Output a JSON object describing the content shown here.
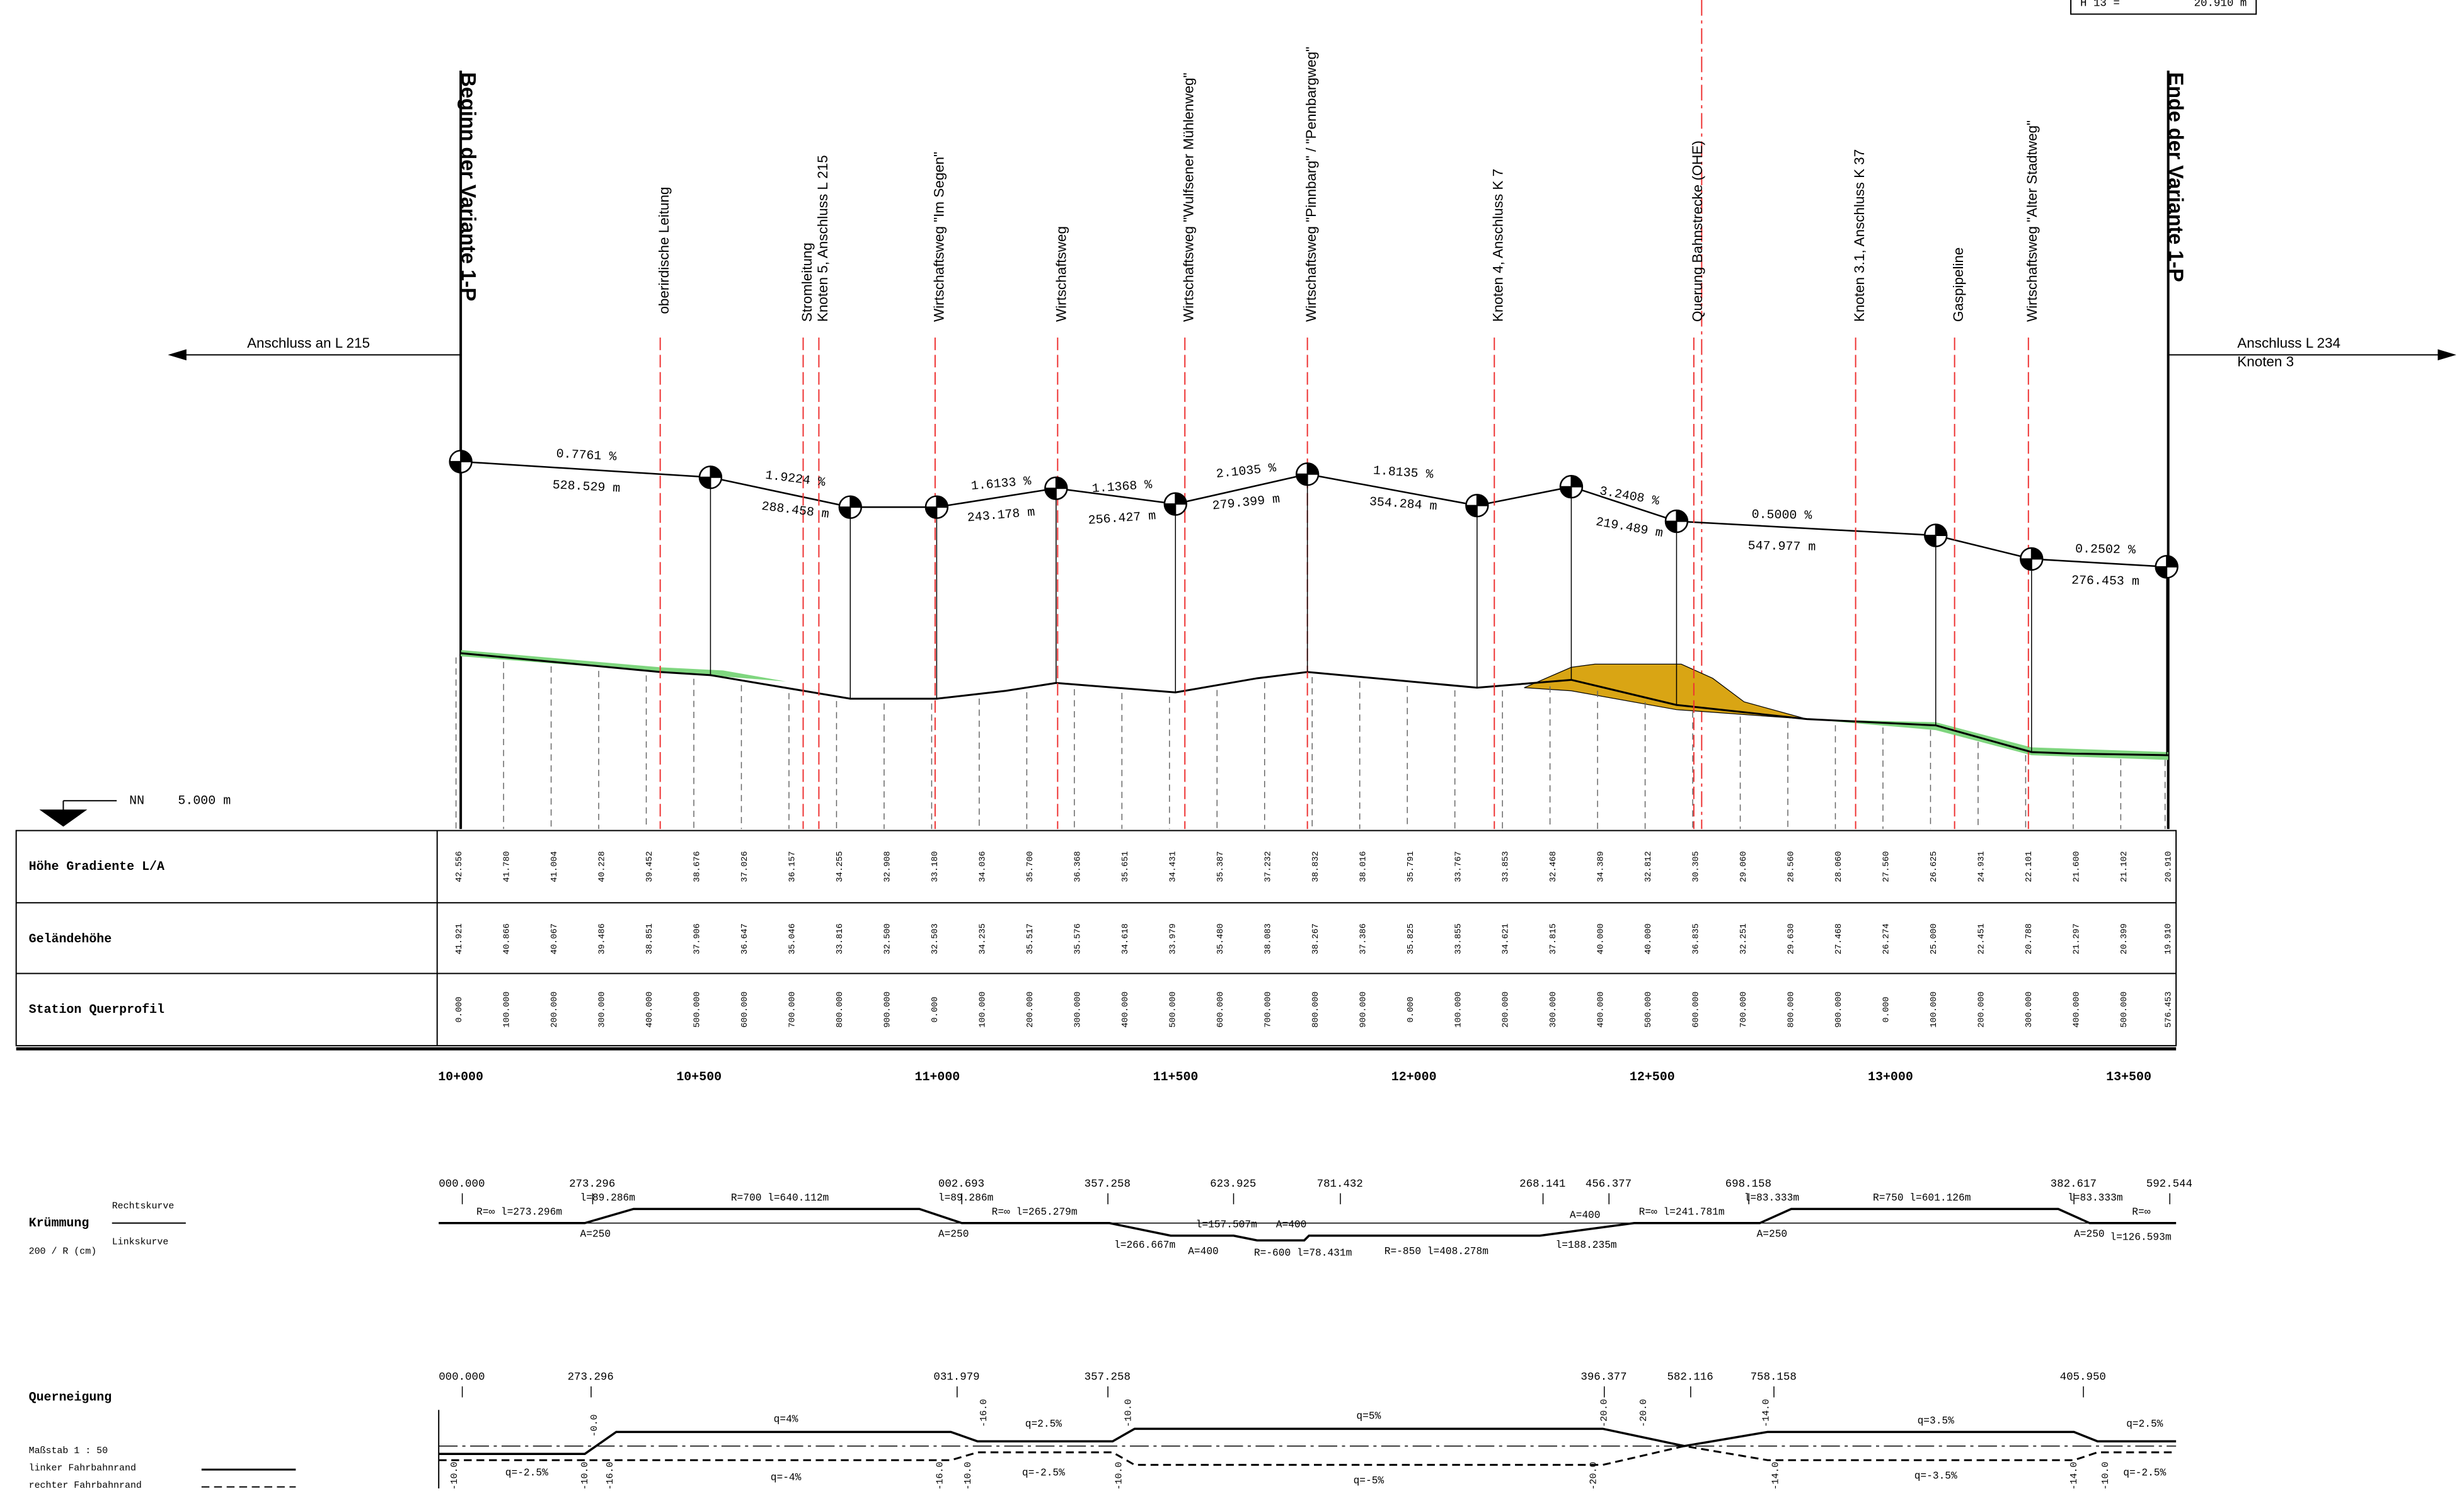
{
  "header": {
    "box_label": "H 13 =",
    "box_value": "20.910 m",
    "begin": "Beginn der Variante 1-P",
    "end": "Ende der Variante 1-P",
    "left_connection": "Anschluss an L 215",
    "right_connection": [
      "Anschluss L 234",
      "Knoten 3"
    ],
    "datum": "NN",
    "datum_value": "5.000 m"
  },
  "landmarks": [
    "oberirdische Leitung",
    "Stromleitung",
    "Knoten 5, Anschluss L 215",
    "Wirtschaftsweg \"Im Segen\"",
    "Wirtschaftsweg",
    "Wirtschaftsweg \"Wulfsener Mühlenweg\"",
    "Wirtschaftsweg \"Pinnbarg\" / \"Pennbargweg\"",
    "Knoten 4, Anschluss K 7",
    "Querung Bahnstrecke (OHE)",
    "Knoten 3.1, Anschluss K 37",
    "Gaspipeline",
    "Wirtschaftsweg \"Alter Stadtweg\""
  ],
  "gradients": [
    {
      "slope": "0.7761 %",
      "length": "528.529 m"
    },
    {
      "slope": "1.9224 %",
      "length": "288.458 m"
    },
    {
      "slope": "1.6133 %",
      "length": "243.178 m"
    },
    {
      "slope": "1.1368 %",
      "length": "256.427 m"
    },
    {
      "slope": "2.1035 %",
      "length": "279.399 m"
    },
    {
      "slope": "1.8135 %",
      "length": "354.284 m"
    },
    {
      "slope": "3.2408 %",
      "length": "219.489 m"
    },
    {
      "slope": "0.5000 %",
      "length": "547.977 m"
    },
    {
      "slope": "0.2502 %",
      "length": "276.453 m"
    }
  ],
  "table": {
    "row_labels": [
      "Höhe Gradiente L/A",
      "Geländehöhe",
      "Station Querprofil"
    ],
    "grade_heights": [
      "42.556",
      "41.780",
      "41.004",
      "40.228",
      "39.452",
      "38.676",
      "37.026",
      "36.157",
      "34.255",
      "32.908",
      "33.180",
      "34.036",
      "35.700",
      "36.368",
      "35.651",
      "34.431",
      "35.387",
      "37.232",
      "38.832",
      "38.016",
      "35.791",
      "33.767",
      "33.853",
      "32.468",
      "34.389",
      "32.812",
      "30.305",
      "29.060",
      "28.560",
      "28.060",
      "27.560",
      "26.625",
      "24.931",
      "22.101",
      "21.600",
      "21.102",
      "20.910"
    ],
    "ground_heights": [
      "41.921",
      "40.866",
      "40.067",
      "39.486",
      "38.851",
      "37.906",
      "36.647",
      "35.046",
      "33.816",
      "32.500",
      "32.503",
      "34.235",
      "35.517",
      "35.576",
      "34.618",
      "33.979",
      "35.480",
      "38.083",
      "38.267",
      "37.386",
      "35.825",
      "33.855",
      "34.621",
      "37.815",
      "40.000",
      "40.000",
      "36.835",
      "32.251",
      "29.630",
      "27.468",
      "26.274",
      "25.000",
      "22.451",
      "20.788",
      "21.297",
      "20.399",
      "19.910"
    ],
    "stations": [
      "0.000",
      "100.000",
      "200.000",
      "300.000",
      "400.000",
      "500.000",
      "600.000",
      "700.000",
      "800.000",
      "900.000",
      "0.000",
      "100.000",
      "200.000",
      "300.000",
      "400.000",
      "500.000",
      "600.000",
      "700.000",
      "800.000",
      "900.000",
      "0.000",
      "100.000",
      "200.000",
      "300.000",
      "400.000",
      "500.000",
      "600.000",
      "700.000",
      "800.000",
      "900.000",
      "0.000",
      "100.000",
      "200.000",
      "300.000",
      "400.000",
      "500.000",
      "576.453"
    ]
  },
  "chainage": [
    "10+000",
    "10+500",
    "11+000",
    "11+500",
    "12+000",
    "12+500",
    "13+000",
    "13+500"
  ],
  "curvature": {
    "title": "Krümmung",
    "right": "Rechtskurve",
    "left": "Linkskurve",
    "unit": "200 / R (cm)",
    "stations": [
      "000.000",
      "273.296",
      "002.693",
      "357.258",
      "623.925",
      "781.432",
      "268.141",
      "456.377",
      "698.158",
      "382.617",
      "592.544"
    ],
    "elements": [
      "R=∞  l=273.296m",
      "l=89.286m",
      "A=250",
      "R=700  l=640.112m",
      "l=89.286m",
      "A=250",
      "R=∞  l=265.279m",
      "l=266.667m",
      "A=400",
      "l=157.507m",
      "A=400",
      "R=-600  l=78.431m",
      "R=-850  l=408.278m",
      "A=400",
      "l=188.235m",
      "R=∞  l=241.781m",
      "l=83.333m",
      "A=250",
      "R=750  l=601.126m",
      "l=83.333m",
      "A=250",
      "R=∞",
      "l=126.593m"
    ]
  },
  "crossfall": {
    "title": "Querneigung",
    "scale": "Maßstab 1 : 50",
    "left_edge": "linker Fahrbahnrand",
    "right_edge": "rechter Fahrbahnrand",
    "stations": [
      "000.000",
      "273.296",
      "031.979",
      "357.258",
      "396.377",
      "582.116",
      "758.158",
      "405.950"
    ],
    "slopes": [
      "q=-2.5%",
      "q=4%",
      "q=-4%",
      "q=2.5%",
      "q=-2.5%",
      "q=5%",
      "q=-5%",
      "q=3.5%",
      "q=-3.5%",
      "q=2.5%",
      "q=-2.5%"
    ],
    "edge_values": [
      "-10.0",
      "-10.0",
      "-0.0",
      "-16.0",
      "-16.0",
      "-10.0",
      "-16.0",
      "-10.0",
      "-10.0",
      "-20.0",
      "-20.0",
      "-20.0",
      "-14.0",
      "-14.0",
      "-14.0",
      "-10.0"
    ]
  }
}
